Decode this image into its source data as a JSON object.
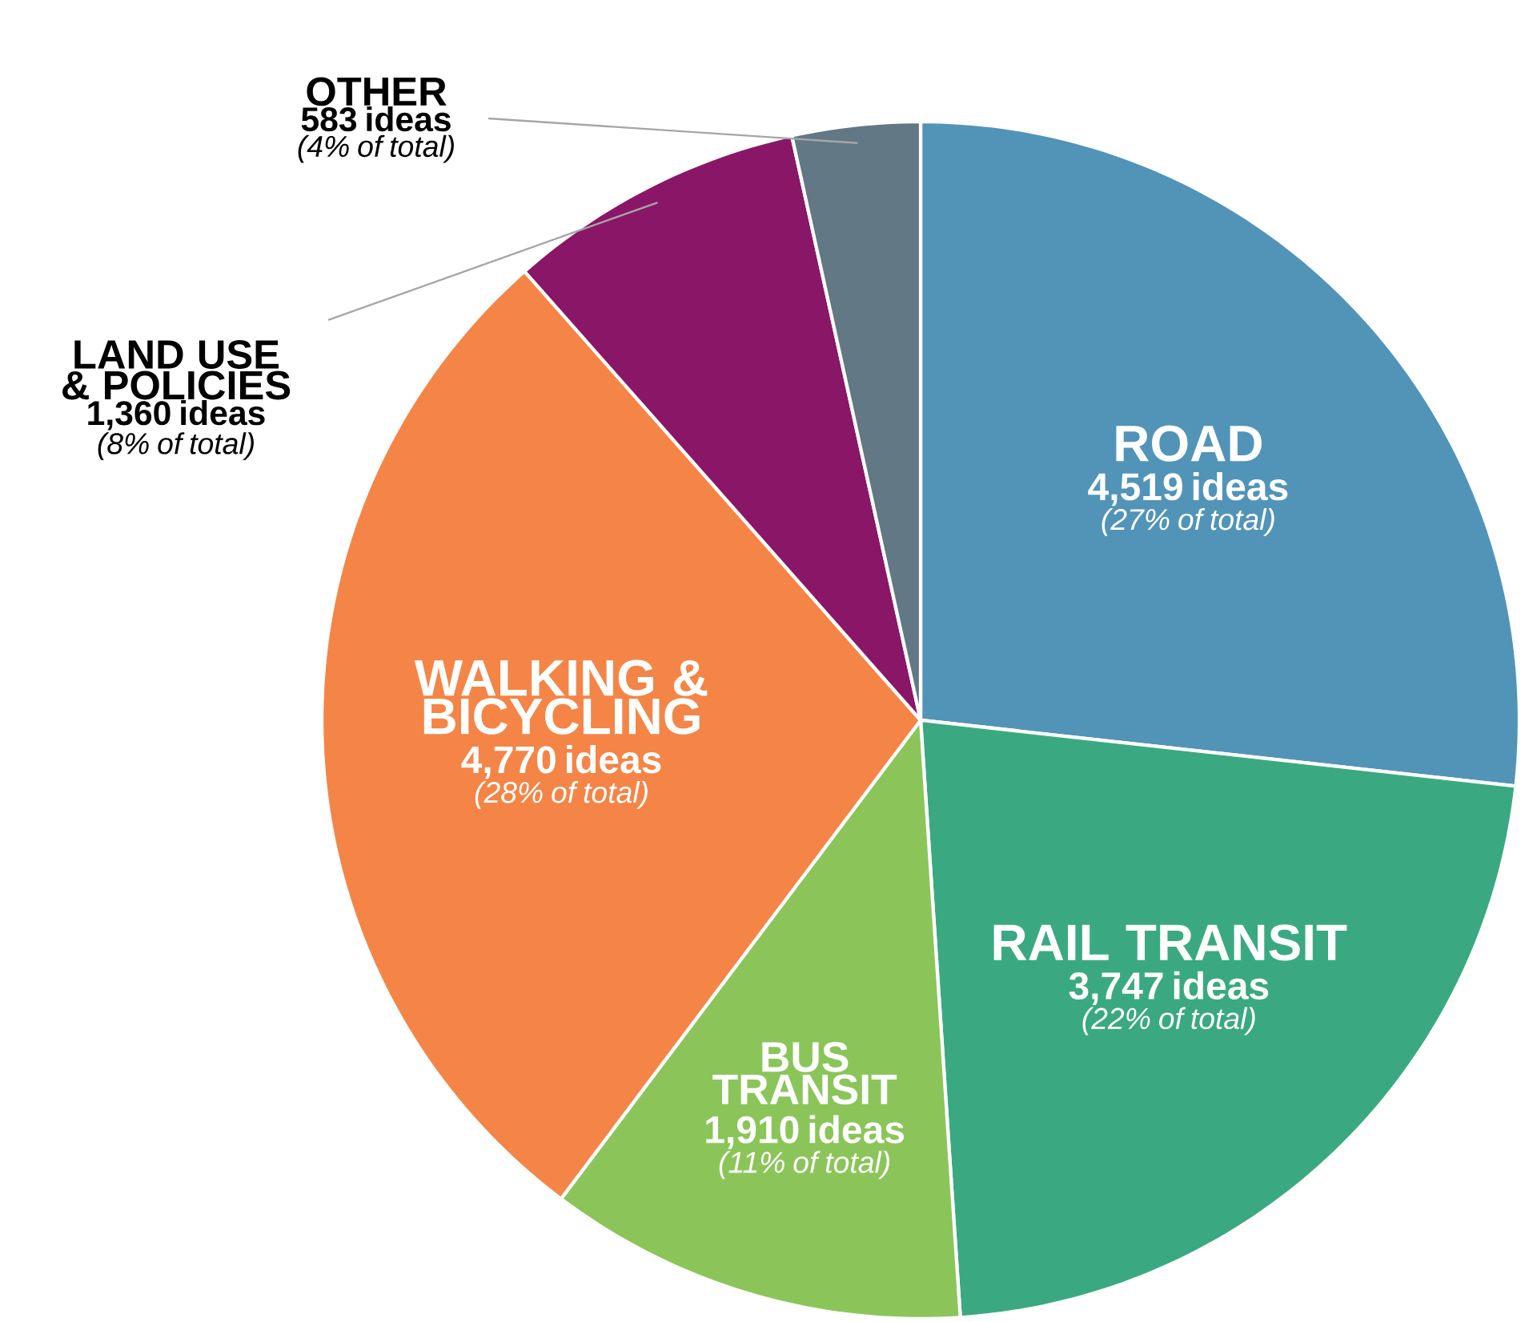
{
  "chart_data": {
    "type": "pie",
    "categories": [
      "ROAD",
      "RAIL TRANSIT",
      "BUS TRANSIT",
      "WALKING & BICYCLING",
      "LAND USE & POLICIES",
      "OTHER"
    ],
    "values": [
      4519,
      3747,
      1910,
      4770,
      1360,
      583
    ],
    "colors": [
      "#5294b8",
      "#3aa981",
      "#8bc55a",
      "#f48547",
      "#8a1668",
      "#627884"
    ],
    "value_labels": [
      "4,519 ideas",
      "3,747 ideas",
      "1,910 ideas",
      "4,770 ideas",
      "1,360 ideas",
      "583 ideas"
    ],
    "annotations": [
      "(27% of total)",
      "(22% of total)",
      "(11% of total)",
      "(28% of total)",
      "(8% of total)",
      "(4% of total)"
    ]
  }
}
